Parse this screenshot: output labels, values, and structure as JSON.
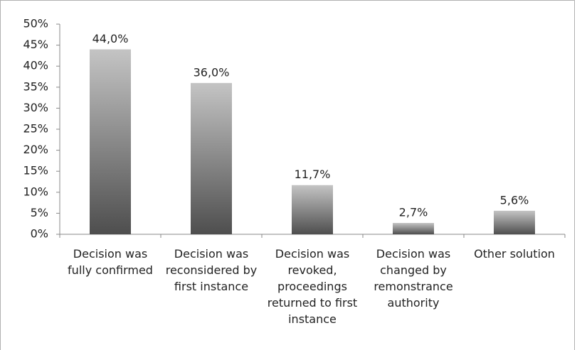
{
  "chart_data": {
    "type": "bar",
    "categories": [
      "Decision was fully confirmed",
      "Decision was reconsidered by first instance",
      "Decision was revoked, proceedings returned to first instance",
      "Decision was changed by remonstrance authority",
      "Other solution"
    ],
    "values": [
      44.0,
      36.0,
      11.7,
      2.7,
      5.6
    ],
    "value_labels": [
      "44,0%",
      "36,0%",
      "11,7%",
      "2,7%",
      "5,6%"
    ],
    "color": "#8a8a8a",
    "ylim": [
      0,
      50
    ],
    "yticks": [
      {
        "value": 0,
        "label": "0%"
      },
      {
        "value": 5,
        "label": "5%"
      },
      {
        "value": 10,
        "label": "10%"
      },
      {
        "value": 15,
        "label": "15%"
      },
      {
        "value": 20,
        "label": "20%"
      },
      {
        "value": 25,
        "label": "25%"
      },
      {
        "value": 30,
        "label": "30%"
      },
      {
        "value": 35,
        "label": "35%"
      },
      {
        "value": 40,
        "label": "40%"
      },
      {
        "value": 45,
        "label": "45%"
      },
      {
        "value": 50,
        "label": "50%"
      }
    ],
    "grid": false
  }
}
